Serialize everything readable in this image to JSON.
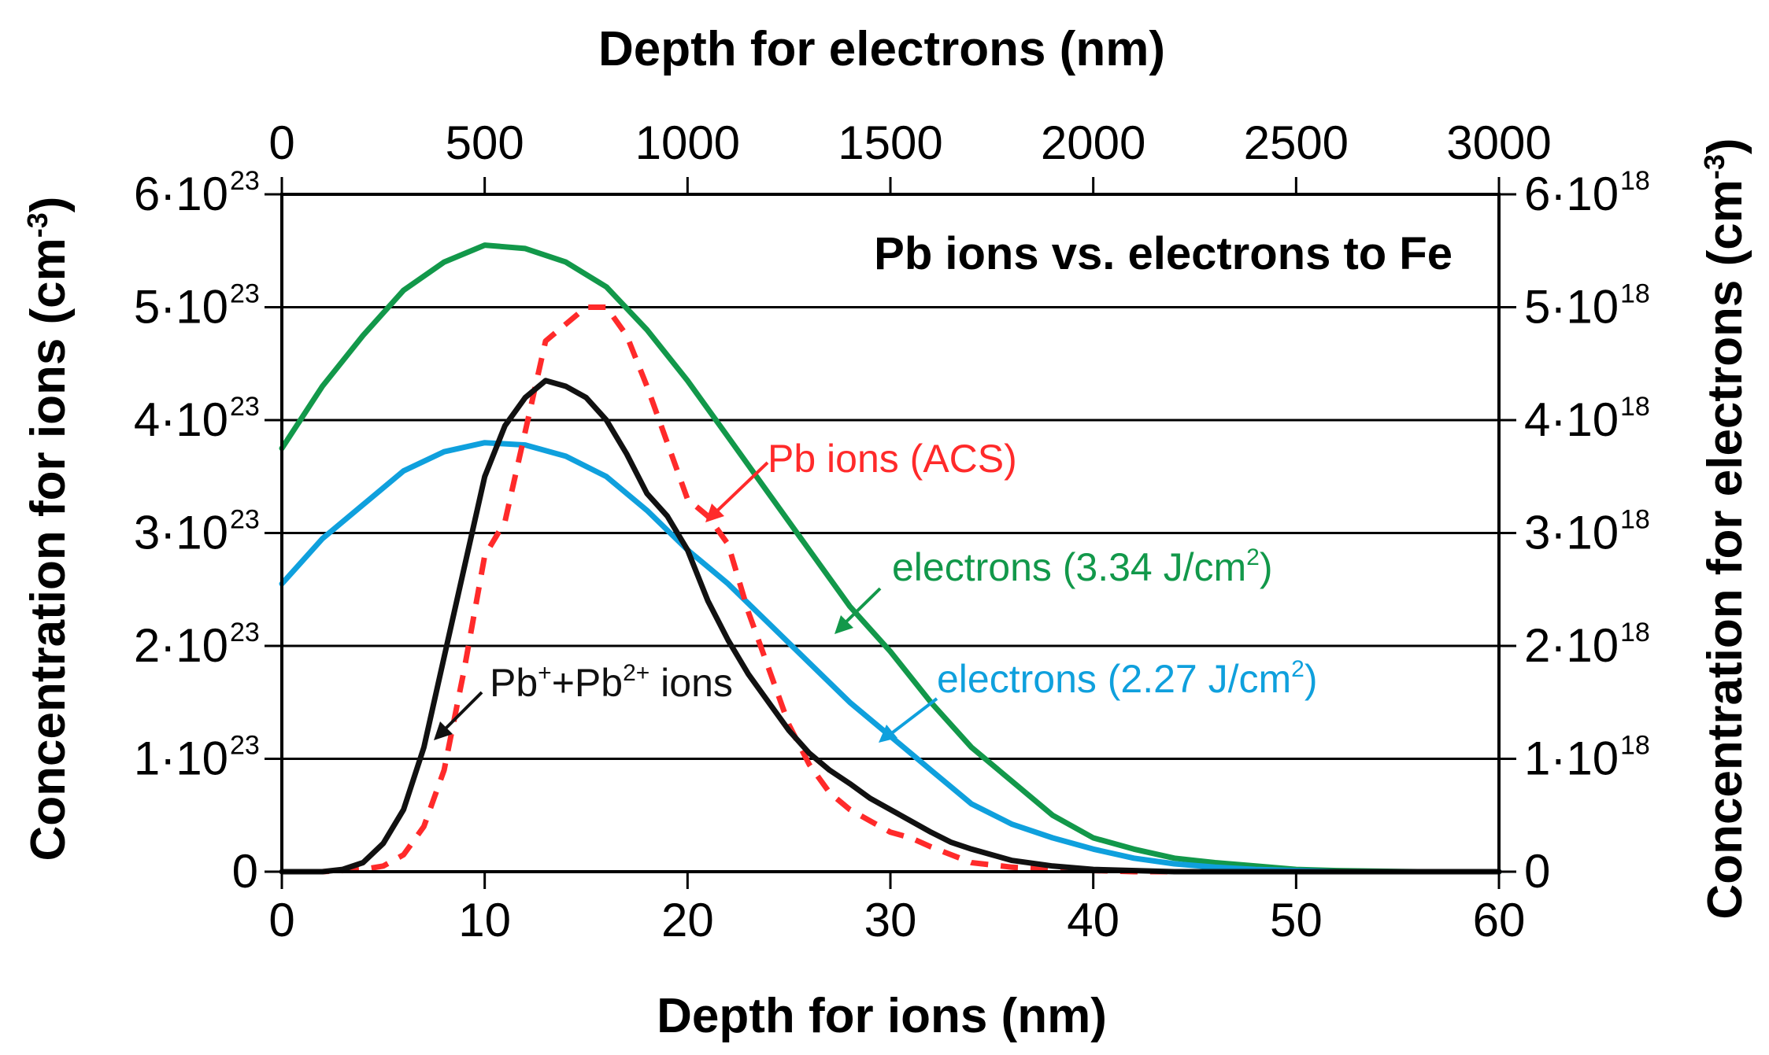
{
  "chart_data": {
    "type": "line",
    "title": "Pb ions vs. electrons to Fe",
    "x_bottom": {
      "label": "Depth for ions (nm)",
      "range": [
        0,
        60
      ],
      "ticks": [
        0,
        10,
        20,
        30,
        40,
        50,
        60
      ]
    },
    "x_top": {
      "label": "Depth for electrons (nm)",
      "range": [
        0,
        3000
      ],
      "ticks": [
        0,
        500,
        1000,
        1500,
        2000,
        2500,
        3000
      ]
    },
    "y_left": {
      "label_main": "Concentration for ions (cm",
      "label_exp": "-3",
      "label_end": ")",
      "range": [
        0,
        6
      ],
      "ticks": [
        {
          "value": 0,
          "mantissa": "0",
          "exp": ""
        },
        {
          "value": 1,
          "mantissa": "1·10",
          "exp": "23"
        },
        {
          "value": 2,
          "mantissa": "2·10",
          "exp": "23"
        },
        {
          "value": 3,
          "mantissa": "3·10",
          "exp": "23"
        },
        {
          "value": 4,
          "mantissa": "4·10",
          "exp": "23"
        },
        {
          "value": 5,
          "mantissa": "5·10",
          "exp": "23"
        },
        {
          "value": 6,
          "mantissa": "6·10",
          "exp": "23"
        }
      ]
    },
    "y_right": {
      "label_main": "Concentration for electrons (cm",
      "label_exp": "-3",
      "label_end": ")",
      "range": [
        0,
        6
      ],
      "ticks": [
        {
          "value": 0,
          "mantissa": "0",
          "exp": ""
        },
        {
          "value": 1,
          "mantissa": "1·10",
          "exp": "18"
        },
        {
          "value": 2,
          "mantissa": "2·10",
          "exp": "18"
        },
        {
          "value": 3,
          "mantissa": "3·10",
          "exp": "18"
        },
        {
          "value": 4,
          "mantissa": "4·10",
          "exp": "18"
        },
        {
          "value": 5,
          "mantissa": "5·10",
          "exp": "18"
        },
        {
          "value": 6,
          "mantissa": "6·10",
          "exp": "18"
        }
      ]
    },
    "grid": "horizontal",
    "series": [
      {
        "name": "electrons (3.34 J/cm2)",
        "color": "#12984a",
        "dash": "solid",
        "x_axis": "top",
        "y_axis": "right",
        "units": "x: nm (electron depth); y: 1e18 cm^-3",
        "points": [
          [
            0,
            3.75
          ],
          [
            100,
            4.3
          ],
          [
            200,
            4.75
          ],
          [
            300,
            5.15
          ],
          [
            400,
            5.4
          ],
          [
            500,
            5.55
          ],
          [
            600,
            5.52
          ],
          [
            700,
            5.4
          ],
          [
            800,
            5.18
          ],
          [
            900,
            4.8
          ],
          [
            1000,
            4.35
          ],
          [
            1100,
            3.85
          ],
          [
            1200,
            3.35
          ],
          [
            1300,
            2.85
          ],
          [
            1400,
            2.35
          ],
          [
            1500,
            1.95
          ],
          [
            1600,
            1.5
          ],
          [
            1700,
            1.1
          ],
          [
            1800,
            0.8
          ],
          [
            1900,
            0.5
          ],
          [
            2000,
            0.3
          ],
          [
            2100,
            0.2
          ],
          [
            2200,
            0.12
          ],
          [
            2300,
            0.08
          ],
          [
            2400,
            0.05
          ],
          [
            2500,
            0.02
          ],
          [
            2600,
            0.01
          ],
          [
            2800,
            0.0
          ],
          [
            3000,
            0.0
          ]
        ]
      },
      {
        "name": "electrons (2.27 J/cm2)",
        "color": "#0fa0dd",
        "dash": "solid",
        "x_axis": "top",
        "y_axis": "right",
        "units": "x: nm (electron depth); y: 1e18 cm^-3",
        "points": [
          [
            0,
            2.55
          ],
          [
            100,
            2.95
          ],
          [
            200,
            3.25
          ],
          [
            300,
            3.55
          ],
          [
            400,
            3.72
          ],
          [
            500,
            3.8
          ],
          [
            600,
            3.78
          ],
          [
            700,
            3.68
          ],
          [
            800,
            3.5
          ],
          [
            900,
            3.2
          ],
          [
            1000,
            2.85
          ],
          [
            1100,
            2.55
          ],
          [
            1200,
            2.2
          ],
          [
            1300,
            1.85
          ],
          [
            1400,
            1.5
          ],
          [
            1500,
            1.2
          ],
          [
            1600,
            0.9
          ],
          [
            1700,
            0.6
          ],
          [
            1800,
            0.42
          ],
          [
            1900,
            0.3
          ],
          [
            2000,
            0.2
          ],
          [
            2100,
            0.12
          ],
          [
            2200,
            0.07
          ],
          [
            2300,
            0.04
          ],
          [
            2400,
            0.02
          ],
          [
            2600,
            0.0
          ],
          [
            3000,
            0.0
          ]
        ]
      },
      {
        "name": "Pb ions (ACS)",
        "color": "#ff2a2a",
        "dash": "dashed",
        "x_axis": "bottom",
        "y_axis": "left",
        "units": "x: nm (ion depth); y: 1e23 cm^-3",
        "points": [
          [
            0,
            0
          ],
          [
            2,
            0.0
          ],
          [
            4,
            0.02
          ],
          [
            5,
            0.05
          ],
          [
            6,
            0.15
          ],
          [
            7,
            0.4
          ],
          [
            8,
            0.9
          ],
          [
            9,
            1.8
          ],
          [
            10,
            2.8
          ],
          [
            11,
            3.1
          ],
          [
            12,
            3.9
          ],
          [
            13,
            4.7
          ],
          [
            14,
            4.85
          ],
          [
            15,
            5.0
          ],
          [
            16,
            5.0
          ],
          [
            17,
            4.75
          ],
          [
            18,
            4.3
          ],
          [
            19,
            3.8
          ],
          [
            20,
            3.3
          ],
          [
            21,
            3.15
          ],
          [
            22,
            2.9
          ],
          [
            23,
            2.3
          ],
          [
            24,
            1.8
          ],
          [
            25,
            1.3
          ],
          [
            26,
            0.95
          ],
          [
            27,
            0.7
          ],
          [
            28,
            0.55
          ],
          [
            29,
            0.45
          ],
          [
            30,
            0.35
          ],
          [
            31,
            0.3
          ],
          [
            32,
            0.22
          ],
          [
            33,
            0.15
          ],
          [
            34,
            0.08
          ],
          [
            36,
            0.04
          ],
          [
            38,
            0.02
          ],
          [
            42,
            0.0
          ],
          [
            60,
            0.0
          ]
        ]
      },
      {
        "name": "Pb+ + Pb2+ ions",
        "color": "#111111",
        "dash": "solid",
        "x_axis": "bottom",
        "y_axis": "left",
        "units": "x: nm (ion depth); y: 1e23 cm^-3",
        "points": [
          [
            0,
            0
          ],
          [
            2,
            0.0
          ],
          [
            3,
            0.02
          ],
          [
            4,
            0.08
          ],
          [
            5,
            0.25
          ],
          [
            6,
            0.55
          ],
          [
            7,
            1.1
          ],
          [
            8,
            1.9
          ],
          [
            9,
            2.7
          ],
          [
            10,
            3.5
          ],
          [
            11,
            3.95
          ],
          [
            12,
            4.2
          ],
          [
            13,
            4.35
          ],
          [
            14,
            4.3
          ],
          [
            15,
            4.2
          ],
          [
            16,
            4.0
          ],
          [
            17,
            3.7
          ],
          [
            18,
            3.35
          ],
          [
            19,
            3.15
          ],
          [
            20,
            2.85
          ],
          [
            21,
            2.4
          ],
          [
            22,
            2.05
          ],
          [
            23,
            1.75
          ],
          [
            24,
            1.5
          ],
          [
            25,
            1.25
          ],
          [
            26,
            1.05
          ],
          [
            27,
            0.9
          ],
          [
            28,
            0.78
          ],
          [
            29,
            0.65
          ],
          [
            30,
            0.55
          ],
          [
            31,
            0.45
          ],
          [
            32,
            0.35
          ],
          [
            33,
            0.26
          ],
          [
            34,
            0.2
          ],
          [
            35,
            0.15
          ],
          [
            36,
            0.1
          ],
          [
            38,
            0.05
          ],
          [
            40,
            0.02
          ],
          [
            44,
            0.0
          ],
          [
            60,
            0.0
          ]
        ]
      }
    ],
    "annotations": [
      {
        "text": "Pb ions (ACS)",
        "color": "#ff2a2a"
      },
      {
        "text_main": "electrons (3.34 J/cm",
        "text_sup": "2",
        "text_end": ")",
        "color": "#12984a"
      },
      {
        "text_main": "electrons (2.27 J/cm",
        "text_sup": "2",
        "text_end": ")",
        "color": "#0fa0dd"
      },
      {
        "text_a": "Pb",
        "sup_a": "+",
        "text_b": "+Pb",
        "sup_b": "2+",
        "text_c": " ions",
        "color": "#111111"
      }
    ]
  }
}
